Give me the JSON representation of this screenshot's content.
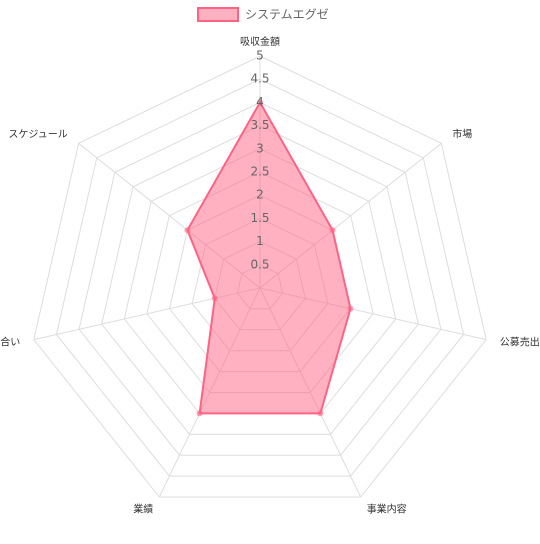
{
  "chart_data": {
    "type": "radar",
    "categories": [
      "吸収金額",
      "市場",
      "公募売出比",
      "事業内容",
      "業績",
      "地合い",
      "スケジュール"
    ],
    "series": [
      {
        "name": "システムエグゼ",
        "color": "#ff6384",
        "values": [
          4,
          2,
          2,
          3,
          3,
          1,
          2
        ]
      }
    ],
    "ylim": [
      0,
      5
    ],
    "yticks": [
      0.5,
      1,
      1.5,
      2,
      2.5,
      3,
      3.5,
      4,
      4.5,
      5
    ],
    "grid": true,
    "legend": "top"
  }
}
